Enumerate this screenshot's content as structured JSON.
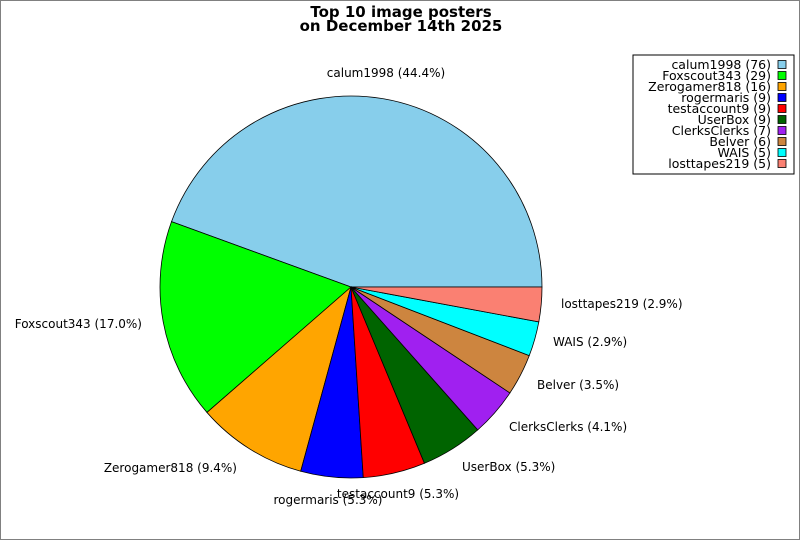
{
  "chart_data": {
    "type": "pie",
    "title": "Top 10 image posters",
    "subtitle": "on December 14th 2025",
    "legend_position": "top-right",
    "slices": [
      {
        "name": "calum1998",
        "count": 76,
        "label": "calum1998 (44.4%)",
        "legend": "calum1998 (76)",
        "color": "#87ceeb"
      },
      {
        "name": "Foxscout343",
        "count": 29,
        "label": "Foxscout343 (17.0%)",
        "legend": "Foxscout343 (29)",
        "color": "#00ff00"
      },
      {
        "name": "Zerogamer818",
        "count": 16,
        "label": "Zerogamer818 (9.4%)",
        "legend": "Zerogamer818 (16)",
        "color": "#ffa500"
      },
      {
        "name": "rogermaris",
        "count": 9,
        "label": "rogermaris (5.3%)",
        "legend": "rogermaris (9)",
        "color": "#0000ff"
      },
      {
        "name": "testaccount9",
        "count": 9,
        "label": "testaccount9 (5.3%)",
        "legend": "testaccount9 (9)",
        "color": "#ff0000"
      },
      {
        "name": "UserBox",
        "count": 9,
        "label": "UserBox (5.3%)",
        "legend": "UserBox (9)",
        "color": "#006400"
      },
      {
        "name": "ClerksClerks",
        "count": 7,
        "label": "ClerksClerks (4.1%)",
        "legend": "ClerksClerks (7)",
        "color": "#a020f0"
      },
      {
        "name": "Belver",
        "count": 6,
        "label": "Belver (3.5%)",
        "legend": "Belver (6)",
        "color": "#cd853f"
      },
      {
        "name": "WAIS",
        "count": 5,
        "label": "WAIS (2.9%)",
        "legend": "WAIS (5)",
        "color": "#00ffff"
      },
      {
        "name": "losttapes219",
        "count": 5,
        "label": "losttapes219 (2.9%)",
        "legend": "losttapes219 (5)",
        "color": "#fa8072"
      }
    ]
  }
}
